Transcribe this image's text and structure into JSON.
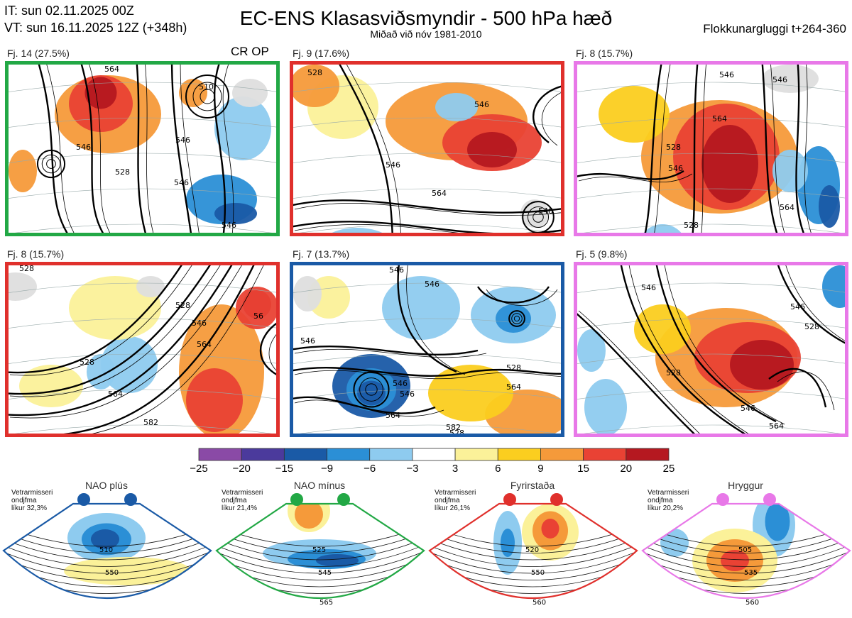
{
  "header": {
    "init_time": "IT: sun 02.11.2025 00Z",
    "valid_time": "VT: sun 16.11.2025 12Z  (+348h)",
    "title": "EC-ENS Klasasviðsmyndir - 500 hPa hæð",
    "subtitle": "Miðað við nóv 1981-2010",
    "cluster_window": "Flokkunargluggi t+264-360"
  },
  "clusters": [
    {
      "title": "Fj. 14 (27.5%)",
      "members": 14,
      "percent": 27.5,
      "border_color": "#22a845",
      "tag": "CR OP",
      "contour_labels": [
        "564",
        "546",
        "528",
        "546",
        "510",
        "546",
        "546"
      ]
    },
    {
      "title": "Fj. 9 (17.6%)",
      "members": 9,
      "percent": 17.6,
      "border_color": "#e0302c",
      "tag": "",
      "contour_labels": [
        "528",
        "546",
        "546",
        "564",
        "546"
      ]
    },
    {
      "title": "Fj. 8 (15.7%)",
      "members": 8,
      "percent": 15.7,
      "border_color": "#e878e8",
      "tag": "",
      "contour_labels": [
        "546",
        "546",
        "528",
        "546",
        "564",
        "564",
        "528"
      ]
    },
    {
      "title": "Fj. 8 (15.7%)",
      "members": 8,
      "percent": 15.7,
      "border_color": "#e0302c",
      "tag": "",
      "contour_labels": [
        "528",
        "528",
        "528",
        "546",
        "564",
        "564",
        "582",
        "56"
      ]
    },
    {
      "title": "Fj. 7 (13.7%)",
      "members": 7,
      "percent": 13.7,
      "border_color": "#1a5aa6",
      "tag": "",
      "contour_labels": [
        "546",
        "546",
        "546",
        "528",
        "546",
        "546",
        "564",
        "564",
        "528",
        "582"
      ]
    },
    {
      "title": "Fj. 5 (9.8%)",
      "members": 5,
      "percent": 9.8,
      "border_color": "#e878e8",
      "tag": "",
      "contour_labels": [
        "528",
        "546",
        "546",
        "528",
        "546",
        "564"
      ]
    }
  ],
  "colorbar": {
    "tick_labels": [
      "−25",
      "−20",
      "−15",
      "−9",
      "−6",
      "−3",
      "3",
      "6",
      "9",
      "15",
      "20",
      "25"
    ],
    "colors": [
      "#8a4aa6",
      "#4b3a9c",
      "#1a5aa6",
      "#2b8fd6",
      "#8ecbef",
      "#ffffff",
      "#fbf199",
      "#fbce1f",
      "#f59a3a",
      "#e94234",
      "#b51820"
    ]
  },
  "regimes": [
    {
      "name": "NAO plús",
      "text": [
        "Vetrarmisseri",
        "ondjfma",
        "líkur 32,3%"
      ],
      "probability": 32.3,
      "color": "#1a5aa6",
      "contour_labels": [
        "510",
        "550"
      ]
    },
    {
      "name": "NAO mínus",
      "text": [
        "Vetrarmisseri",
        "ondjfma",
        "líkur 21,4%"
      ],
      "probability": 21.4,
      "color": "#22a845",
      "contour_labels": [
        "525",
        "545",
        "565"
      ]
    },
    {
      "name": "Fyrirstaða",
      "text": [
        "Vetrarmisseri",
        "ondjfma",
        "líkur 26,1%"
      ],
      "probability": 26.1,
      "color": "#e0302c",
      "contour_labels": [
        "520",
        "550",
        "560"
      ]
    },
    {
      "name": "Hryggur",
      "text": [
        "Vetrarmisseri",
        "ondjfma",
        "líkur 20,2%"
      ],
      "probability": 20.2,
      "color": "#e878e8",
      "contour_labels": [
        "505",
        "535",
        "560"
      ]
    }
  ],
  "chart_data": {
    "type": "heatmap",
    "title": "EC-ENS Klasasviðsmyndir - 500 hPa hæð",
    "variable": "500 hPa geopotential height anomaly (shading) and height contours",
    "contour_levels": [
      510,
      528,
      546,
      564,
      582
    ],
    "colorbar_bounds": [
      -25,
      -20,
      -15,
      -9,
      -6,
      -3,
      3,
      6,
      9,
      15,
      20,
      25
    ],
    "clusters": [
      {
        "name": "Fj. 14",
        "members": 14,
        "percent": 27.5
      },
      {
        "name": "Fj. 9",
        "members": 9,
        "percent": 17.6
      },
      {
        "name": "Fj. 8",
        "members": 8,
        "percent": 15.7
      },
      {
        "name": "Fj. 8",
        "members": 8,
        "percent": 15.7
      },
      {
        "name": "Fj. 7",
        "members": 7,
        "percent": 13.7
      },
      {
        "name": "Fj. 5",
        "members": 5,
        "percent": 9.8
      }
    ],
    "regime_probabilities": [
      {
        "regime": "NAO plús",
        "value": 32.3
      },
      {
        "regime": "NAO mínus",
        "value": 21.4
      },
      {
        "regime": "Fyrirstaða",
        "value": 26.1
      },
      {
        "regime": "Hryggur",
        "value": 20.2
      }
    ]
  }
}
